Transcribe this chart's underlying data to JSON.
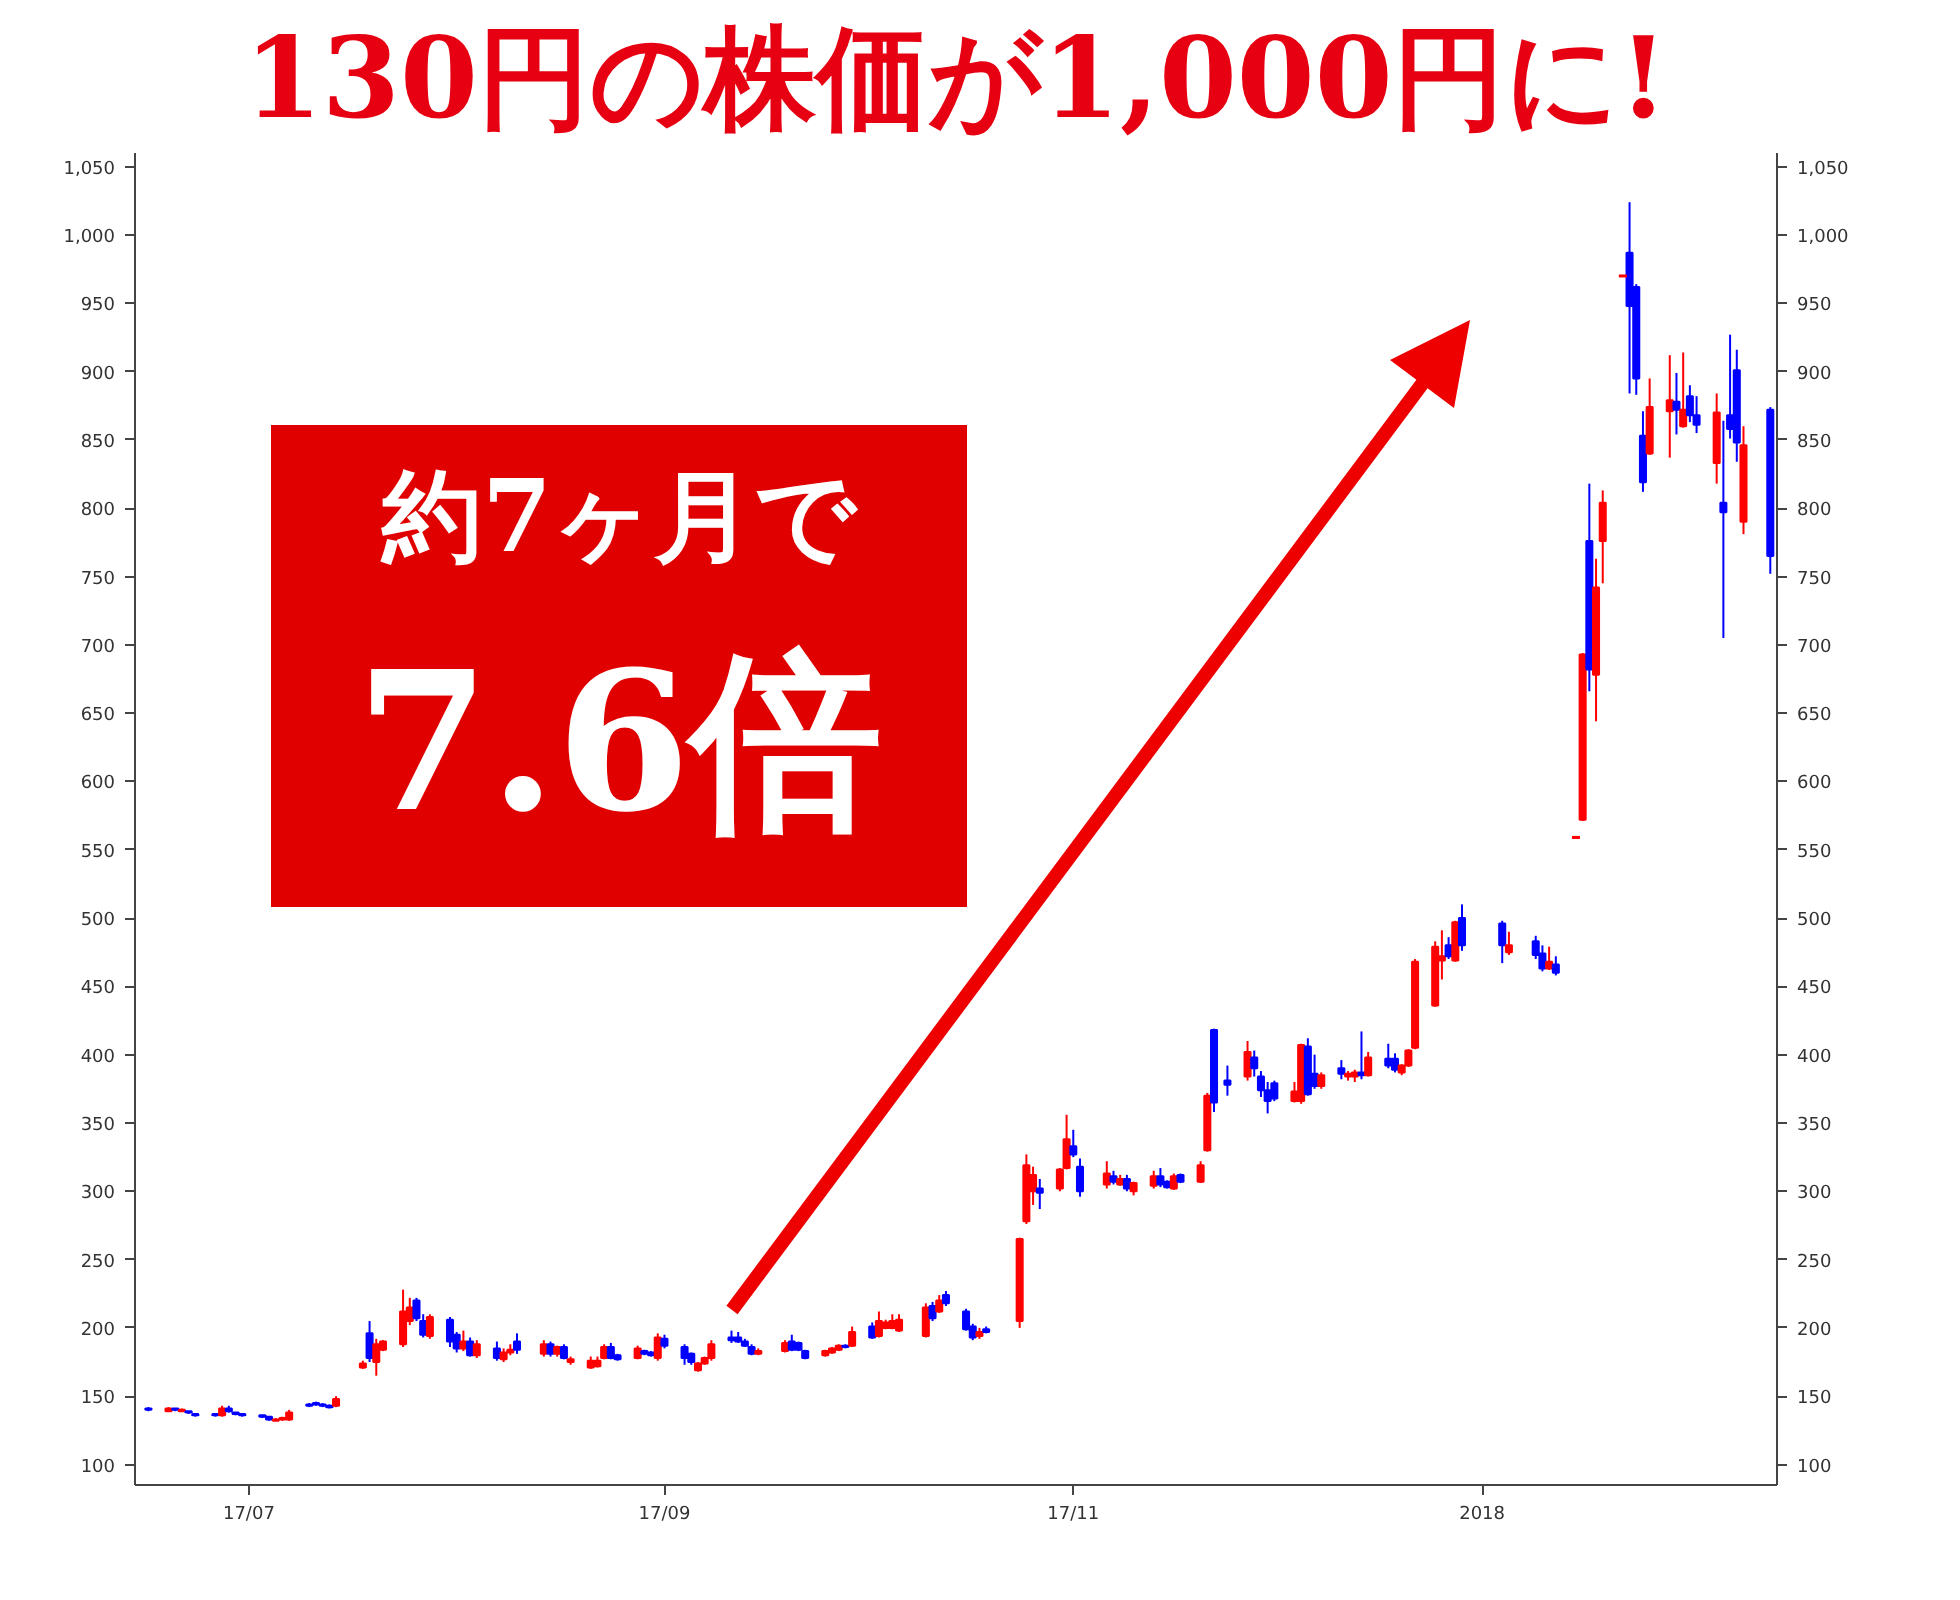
{
  "chart_data": {
    "type": "candlestick",
    "title": "130円の株価が1,000円に!",
    "annotations": [
      "約7ヶ月で",
      "7.6倍"
    ],
    "x": [
      "2017-06-16",
      "2017-06-19",
      "2017-06-20",
      "2017-06-21",
      "2017-06-22",
      "2017-06-23",
      "2017-06-26",
      "2017-06-27",
      "2017-06-28",
      "2017-06-29",
      "2017-06-30",
      "2017-07-03",
      "2017-07-04",
      "2017-07-05",
      "2017-07-06",
      "2017-07-07",
      "2017-07-10",
      "2017-07-11",
      "2017-07-12",
      "2017-07-13",
      "2017-07-14",
      "2017-07-18",
      "2017-07-19",
      "2017-07-20",
      "2017-07-21",
      "2017-07-24",
      "2017-07-25",
      "2017-07-26",
      "2017-07-27",
      "2017-07-28",
      "2017-07-31",
      "2017-08-01",
      "2017-08-02",
      "2017-08-03",
      "2017-08-04",
      "2017-08-07",
      "2017-08-08",
      "2017-08-09",
      "2017-08-10",
      "2017-08-14",
      "2017-08-15",
      "2017-08-16",
      "2017-08-17",
      "2017-08-18",
      "2017-08-21",
      "2017-08-22",
      "2017-08-23",
      "2017-08-24",
      "2017-08-25",
      "2017-08-28",
      "2017-08-29",
      "2017-08-30",
      "2017-08-31",
      "2017-09-01",
      "2017-09-04",
      "2017-09-05",
      "2017-09-06",
      "2017-09-07",
      "2017-09-08",
      "2017-09-11",
      "2017-09-12",
      "2017-09-13",
      "2017-09-14",
      "2017-09-15",
      "2017-09-19",
      "2017-09-20",
      "2017-09-21",
      "2017-09-22",
      "2017-09-25",
      "2017-09-26",
      "2017-09-27",
      "2017-09-28",
      "2017-09-29",
      "2017-10-02",
      "2017-10-03",
      "2017-10-04",
      "2017-10-05",
      "2017-10-06",
      "2017-10-10",
      "2017-10-11",
      "2017-10-12",
      "2017-10-13",
      "2017-10-16",
      "2017-10-17",
      "2017-10-18",
      "2017-10-19",
      "2017-10-24",
      "2017-10-25",
      "2017-10-26",
      "2017-10-27",
      "2017-10-30",
      "2017-10-31",
      "2017-11-01",
      "2017-11-02",
      "2017-11-06",
      "2017-11-07",
      "2017-11-08",
      "2017-11-09",
      "2017-11-10",
      "2017-11-13",
      "2017-11-14",
      "2017-11-15",
      "2017-11-16",
      "2017-11-17",
      "2017-11-20",
      "2017-11-21",
      "2017-11-22",
      "2017-11-24",
      "2017-11-27",
      "2017-11-28",
      "2017-11-29",
      "2017-11-30",
      "2017-12-01",
      "2017-12-04",
      "2017-12-05",
      "2017-12-06",
      "2017-12-07",
      "2017-12-08",
      "2017-12-11",
      "2017-12-12",
      "2017-12-13",
      "2017-12-14",
      "2017-12-15",
      "2017-12-18",
      "2017-12-19",
      "2017-12-20",
      "2017-12-21",
      "2017-12-22",
      "2017-12-25",
      "2017-12-26",
      "2017-12-27",
      "2017-12-28",
      "2017-12-29",
      "2018-01-04",
      "2018-01-05",
      "2018-01-09",
      "2018-01-10",
      "2018-01-11",
      "2018-01-12",
      "2018-01-15",
      "2018-01-16",
      "2018-01-17",
      "2018-01-18",
      "2018-01-19",
      "2018-01-22",
      "2018-01-23",
      "2018-01-24",
      "2018-01-25",
      "2018-01-26",
      "2018-01-29",
      "2018-01-30",
      "2018-01-31",
      "2018-02-01",
      "2018-02-02",
      "2018-02-05",
      "2018-02-06",
      "2018-02-07",
      "2018-02-08",
      "2018-02-09",
      "2018-02-13"
    ],
    "ohlc": [
      [
        141,
        142,
        139,
        140
      ],
      [
        139,
        142,
        139,
        141
      ],
      [
        141,
        141,
        139,
        140
      ],
      [
        139,
        141,
        139,
        140
      ],
      [
        139,
        139,
        137,
        138
      ],
      [
        137,
        137,
        135,
        136
      ],
      [
        137,
        137,
        135,
        136
      ],
      [
        136,
        143,
        135,
        141
      ],
      [
        141,
        143,
        138,
        139
      ],
      [
        138,
        138,
        136,
        137
      ],
      [
        137,
        137,
        135,
        136
      ],
      [
        136,
        136,
        134,
        135
      ],
      [
        135,
        135,
        132,
        133
      ],
      [
        132,
        134,
        132,
        133
      ],
      [
        133,
        135,
        132,
        134
      ],
      [
        133,
        140,
        132,
        138
      ],
      [
        144,
        145,
        142,
        143
      ],
      [
        145,
        146,
        143,
        144
      ],
      [
        144,
        145,
        142,
        143
      ],
      [
        143,
        144,
        141,
        142
      ],
      [
        143,
        150,
        142,
        148
      ],
      [
        171,
        176,
        170,
        174
      ],
      [
        196,
        205,
        175,
        178
      ],
      [
        175,
        192,
        165,
        188
      ],
      [
        184,
        191,
        183,
        190
      ],
      [
        188,
        228,
        186,
        212
      ],
      [
        205,
        222,
        202,
        215
      ],
      [
        220,
        222,
        205,
        207
      ],
      [
        205,
        210,
        193,
        195
      ],
      [
        194,
        210,
        192,
        208
      ],
      [
        206,
        208,
        186,
        190
      ],
      [
        195,
        197,
        182,
        185
      ],
      [
        185,
        198,
        183,
        190
      ],
      [
        190,
        193,
        179,
        180
      ],
      [
        180,
        191,
        178,
        188
      ],
      [
        185,
        190,
        176,
        178
      ],
      [
        177,
        185,
        175,
        182
      ],
      [
        182,
        188,
        180,
        184
      ],
      [
        190,
        196,
        181,
        184
      ],
      [
        181,
        191,
        179,
        188
      ],
      [
        188,
        190,
        179,
        181
      ],
      [
        181,
        187,
        179,
        186
      ],
      [
        186,
        188,
        177,
        178
      ],
      [
        175,
        179,
        173,
        177
      ],
      [
        171,
        179,
        170,
        176
      ],
      [
        172,
        179,
        171,
        176
      ],
      [
        178,
        188,
        177,
        186
      ],
      [
        186,
        189,
        177,
        178
      ],
      [
        180,
        181,
        176,
        177
      ],
      [
        178,
        187,
        177,
        185
      ],
      [
        183,
        184,
        180,
        181
      ],
      [
        182,
        183,
        179,
        180
      ],
      [
        178,
        196,
        176,
        193
      ],
      [
        192,
        195,
        185,
        187
      ],
      [
        186,
        188,
        173,
        178
      ],
      [
        181,
        182,
        173,
        175
      ],
      [
        169,
        175,
        168,
        174
      ],
      [
        174,
        179,
        173,
        178
      ],
      [
        178,
        191,
        176,
        188
      ],
      [
        193,
        198,
        189,
        191
      ],
      [
        193,
        197,
        189,
        190
      ],
      [
        190,
        192,
        186,
        187
      ],
      [
        186,
        188,
        180,
        181
      ],
      [
        181,
        185,
        180,
        183
      ],
      [
        183,
        191,
        182,
        189
      ],
      [
        190,
        195,
        183,
        184
      ],
      [
        189,
        190,
        183,
        184
      ],
      [
        183,
        184,
        177,
        178
      ],
      [
        180,
        184,
        179,
        183
      ],
      [
        182,
        186,
        181,
        185
      ],
      [
        184,
        188,
        183,
        187
      ],
      [
        187,
        188,
        185,
        186
      ],
      [
        187,
        201,
        186,
        197
      ],
      [
        201,
        204,
        192,
        193
      ],
      [
        194,
        212,
        193,
        205
      ],
      [
        200,
        206,
        199,
        204
      ],
      [
        200,
        210,
        199,
        205
      ],
      [
        198,
        210,
        197,
        206
      ],
      [
        194,
        218,
        193,
        215
      ],
      [
        216,
        219,
        205,
        207
      ],
      [
        212,
        224,
        211,
        220
      ],
      [
        224,
        227,
        216,
        218
      ],
      [
        212,
        214,
        198,
        199
      ],
      [
        201,
        203,
        191,
        193
      ],
      [
        194,
        200,
        192,
        197
      ],
      [
        199,
        201,
        196,
        197
      ],
      [
        205,
        266,
        200,
        265
      ],
      [
        278,
        327,
        276,
        319
      ],
      [
        300,
        318,
        290,
        312
      ],
      [
        302,
        309,
        287,
        299
      ],
      [
        302,
        317,
        300,
        316
      ],
      [
        317,
        356,
        316,
        338
      ],
      [
        333,
        345,
        325,
        327
      ],
      [
        318,
        324,
        296,
        300
      ],
      [
        305,
        322,
        302,
        313
      ],
      [
        311,
        315,
        305,
        307
      ],
      [
        305,
        312,
        304,
        309
      ],
      [
        309,
        312,
        300,
        302
      ],
      [
        300,
        307,
        297,
        306
      ],
      [
        304,
        315,
        302,
        311
      ],
      [
        311,
        317,
        303,
        305
      ],
      [
        307,
        308,
        302,
        303
      ],
      [
        302,
        313,
        301,
        311
      ],
      [
        312,
        313,
        306,
        307
      ],
      [
        307,
        322,
        306,
        319
      ],
      [
        330,
        372,
        329,
        370
      ],
      [
        418,
        419,
        358,
        365
      ],
      [
        381,
        392,
        370,
        378
      ],
      [
        384,
        410,
        381,
        402
      ],
      [
        398,
        403,
        384,
        390
      ],
      [
        384,
        388,
        369,
        374
      ],
      [
        374,
        380,
        357,
        366
      ],
      [
        379,
        381,
        366,
        368
      ],
      [
        366,
        380,
        365,
        373
      ],
      [
        366,
        408,
        364,
        407
      ],
      [
        406,
        412,
        370,
        371
      ],
      [
        386,
        400,
        375,
        377
      ],
      [
        377,
        387,
        375,
        385
      ],
      [
        390,
        396,
        382,
        386
      ],
      [
        384,
        388,
        381,
        386
      ],
      [
        384,
        389,
        380,
        387
      ],
      [
        387,
        417,
        382,
        385
      ],
      [
        385,
        402,
        384,
        398
      ],
      [
        397,
        408,
        390,
        392
      ],
      [
        397,
        401,
        387,
        389
      ],
      [
        387,
        393,
        385,
        392
      ],
      [
        392,
        404,
        391,
        403
      ],
      [
        405,
        470,
        404,
        468
      ],
      [
        436,
        483,
        435,
        479
      ],
      [
        469,
        491,
        455,
        472
      ],
      [
        480,
        486,
        470,
        472
      ],
      [
        469,
        498,
        468,
        497
      ],
      [
        500,
        510,
        476,
        480
      ],
      [
        496,
        498,
        467,
        480
      ],
      [
        475,
        490,
        473,
        480
      ],
      [
        483,
        487,
        470,
        473
      ],
      [
        474,
        480,
        461,
        463
      ],
      [
        463,
        479,
        462,
        468
      ],
      [
        466,
        472,
        458,
        460
      ],
      [
        559,
        559,
        559,
        559
      ],
      [
        572,
        694,
        571,
        693
      ],
      [
        776,
        818,
        666,
        682
      ],
      [
        678,
        763,
        644,
        742
      ],
      [
        776,
        813,
        745,
        804
      ],
      [
        970,
        970,
        970,
        970
      ],
      [
        987,
        1024,
        884,
        948
      ],
      [
        962,
        964,
        883,
        895
      ],
      [
        853,
        871,
        812,
        819
      ],
      [
        840,
        895,
        839,
        874
      ],
      [
        871,
        912,
        837,
        879
      ],
      [
        878,
        899,
        854,
        872
      ],
      [
        860,
        914,
        859,
        872
      ],
      [
        882,
        890,
        863,
        868
      ],
      [
        868,
        882,
        855,
        861
      ],
      [
        833,
        884,
        818,
        870
      ],
      [
        804,
        864,
        705,
        797
      ],
      [
        868,
        927,
        851,
        858
      ],
      [
        901,
        916,
        834,
        848
      ],
      [
        790,
        860,
        781,
        846
      ],
      [
        872,
        874,
        752,
        765
      ]
    ],
    "colors": [
      "#0000ff",
      "#ff0000",
      "#0000ff",
      "#ff0000",
      "#0000ff",
      "#0000ff",
      "#0000ff",
      "#ff0000",
      "#0000ff",
      "#0000ff",
      "#0000ff",
      "#0000ff",
      "#0000ff",
      "#ff0000",
      "#ff0000",
      "#ff0000",
      "#0000ff",
      "#0000ff",
      "#0000ff",
      "#0000ff",
      "#ff0000",
      "#ff0000",
      "#0000ff",
      "#ff0000",
      "#ff0000",
      "#ff0000",
      "#ff0000",
      "#0000ff",
      "#0000ff",
      "#ff0000",
      "#0000ff",
      "#0000ff",
      "#ff0000",
      "#0000ff",
      "#ff0000",
      "#0000ff",
      "#ff0000",
      "#ff0000",
      "#0000ff",
      "#ff0000",
      "#0000ff",
      "#ff0000",
      "#0000ff",
      "#ff0000",
      "#ff0000",
      "#ff0000",
      "#ff0000",
      "#0000ff",
      "#0000ff",
      "#ff0000",
      "#0000ff",
      "#0000ff",
      "#ff0000",
      "#0000ff",
      "#0000ff",
      "#0000ff",
      "#ff0000",
      "#ff0000",
      "#ff0000",
      "#0000ff",
      "#0000ff",
      "#0000ff",
      "#0000ff",
      "#ff0000",
      "#ff0000",
      "#0000ff",
      "#0000ff",
      "#0000ff",
      "#ff0000",
      "#ff0000",
      "#ff0000",
      "#0000ff",
      "#ff0000",
      "#0000ff",
      "#ff0000",
      "#ff0000",
      "#ff0000",
      "#ff0000",
      "#ff0000",
      "#0000ff",
      "#ff0000",
      "#0000ff",
      "#0000ff",
      "#0000ff",
      "#ff0000",
      "#0000ff",
      "#ff0000",
      "#ff0000",
      "#ff0000",
      "#0000ff",
      "#ff0000",
      "#ff0000",
      "#0000ff",
      "#0000ff",
      "#ff0000",
      "#0000ff",
      "#ff0000",
      "#0000ff",
      "#ff0000",
      "#ff0000",
      "#0000ff",
      "#0000ff",
      "#ff0000",
      "#0000ff",
      "#ff0000",
      "#ff0000",
      "#0000ff",
      "#0000ff",
      "#ff0000",
      "#0000ff",
      "#0000ff",
      "#0000ff",
      "#0000ff",
      "#ff0000",
      "#ff0000",
      "#0000ff",
      "#0000ff",
      "#ff0000",
      "#0000ff",
      "#ff0000",
      "#ff0000",
      "#0000ff",
      "#ff0000",
      "#0000ff",
      "#0000ff",
      "#ff0000",
      "#ff0000",
      "#ff0000",
      "#ff0000",
      "#ff0000",
      "#0000ff",
      "#ff0000",
      "#0000ff",
      "#0000ff",
      "#ff0000",
      "#0000ff",
      "#0000ff",
      "#ff0000",
      "#0000ff",
      "#ff0000",
      "#ff0000",
      "#0000ff",
      "#ff0000",
      "#ff0000",
      "#ff0000",
      "#0000ff",
      "#0000ff",
      "#0000ff",
      "#ff0000",
      "#ff0000",
      "#0000ff",
      "#ff0000",
      "#0000ff",
      "#0000ff",
      "#ff0000",
      "#0000ff",
      "#0000ff",
      "#0000ff",
      "#ff0000",
      "#0000ff"
    ],
    "xlim": [
      "2017-06-14",
      "2018-02-14"
    ],
    "xticks": [
      {
        "value": "2017-07-01",
        "label": "17/07"
      },
      {
        "value": "2017-09-01",
        "label": "17/09"
      },
      {
        "value": "2017-11-01",
        "label": "17/11"
      },
      {
        "value": "2018-01-01",
        "label": "2018"
      }
    ],
    "ylim": [
      85,
      1060
    ],
    "yticks": [
      100,
      150,
      200,
      250,
      300,
      350,
      400,
      450,
      500,
      550,
      600,
      650,
      700,
      750,
      800,
      850,
      900,
      950,
      {
        "value": 1000,
        "label": "1,000"
      },
      {
        "value": 1050,
        "label": "1,050"
      }
    ],
    "y2lim": [
      85,
      1060
    ],
    "y2ticks": [
      100,
      150,
      200,
      250,
      300,
      350,
      400,
      450,
      500,
      550,
      600,
      650,
      700,
      750,
      800,
      850,
      900,
      950,
      {
        "value": 1000,
        "label": "1,000"
      },
      {
        "value": 1050,
        "label": "1,050"
      }
    ]
  }
}
